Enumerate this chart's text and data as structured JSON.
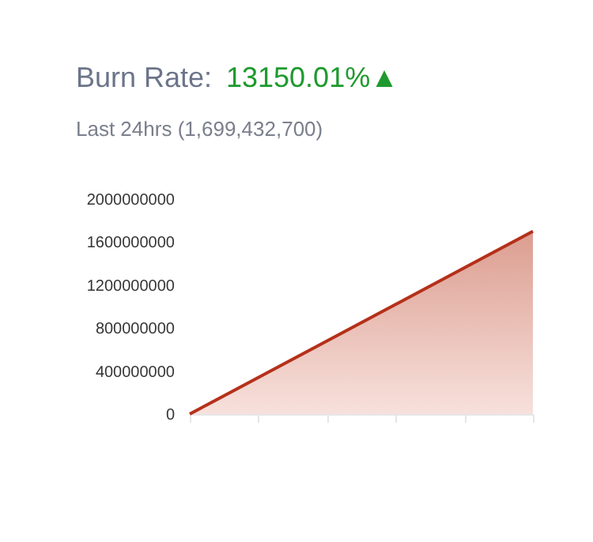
{
  "chart_data": {
    "type": "area",
    "title": "Burn Rate:",
    "subtitle": "Last 24hrs (1,699,432,700)",
    "annotations": [
      "13150.01%▲"
    ],
    "categories": [
      null,
      null,
      null,
      null,
      null,
      null
    ],
    "series": [
      {
        "color": "#b5301a",
        "values": [
          0,
          340000000,
          680000000,
          1020000000,
          1360000000,
          1700000000
        ]
      }
    ],
    "ylim": [
      0,
      2000000000
    ],
    "yticks": [
      0,
      400000000,
      800000000,
      1200000000,
      1600000000,
      2000000000
    ],
    "grid": false,
    "tick_labels": "y"
  }
}
